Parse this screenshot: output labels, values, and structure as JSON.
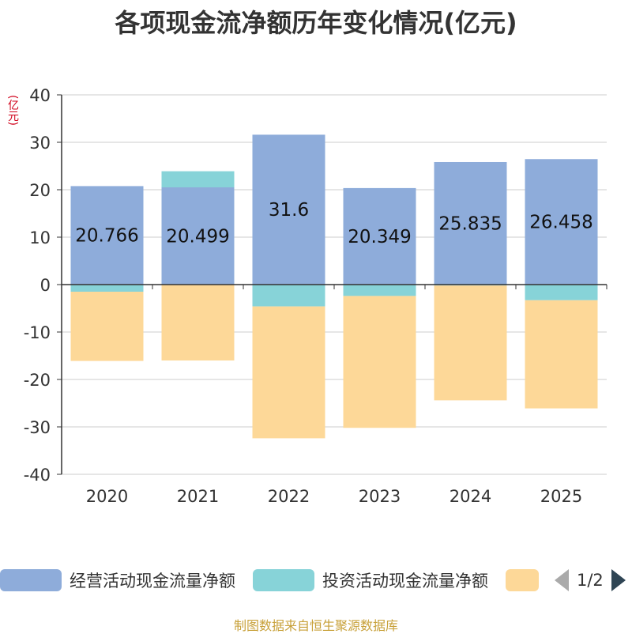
{
  "title": "各项现金流净额历年变化情况(亿元)",
  "unit_label": "(亿元)",
  "source": "制图数据来自恒生聚源数据库",
  "legend": {
    "items": [
      {
        "label": "经营活动现金流量净额",
        "color": "#8eacda"
      },
      {
        "label": "投资活动现金流量净额",
        "color": "#87d3d8"
      },
      {
        "label": "",
        "color": "#fdd898"
      }
    ],
    "pager": "1/2"
  },
  "chart_data": {
    "type": "bar",
    "stacked": true,
    "title": "各项现金流净额历年变化情况(亿元)",
    "ylabel": "(亿元)",
    "ylim": [
      -40,
      40
    ],
    "yticks": [
      40,
      30,
      20,
      10,
      0,
      -10,
      -20,
      -30,
      -40
    ],
    "categories": [
      "2020",
      "2021",
      "2022",
      "2023",
      "2024",
      "2025"
    ],
    "series": [
      {
        "name": "经营活动现金流量净额",
        "color": "#8eacda",
        "values": [
          20.766,
          20.499,
          31.6,
          20.349,
          25.835,
          26.458
        ],
        "labels": [
          "20.766",
          "20.499",
          "31.6",
          "20.349",
          "25.835",
          "26.458"
        ]
      },
      {
        "name": "投资活动现金流量净额",
        "color": "#87d3d8",
        "values": [
          -1.5,
          3.4,
          -4.6,
          -2.4,
          -0.2,
          -3.3
        ]
      },
      {
        "name": "",
        "color": "#fdd898",
        "values": [
          -14.6,
          -16.0,
          -27.8,
          -27.8,
          -24.2,
          -22.8
        ]
      }
    ]
  }
}
